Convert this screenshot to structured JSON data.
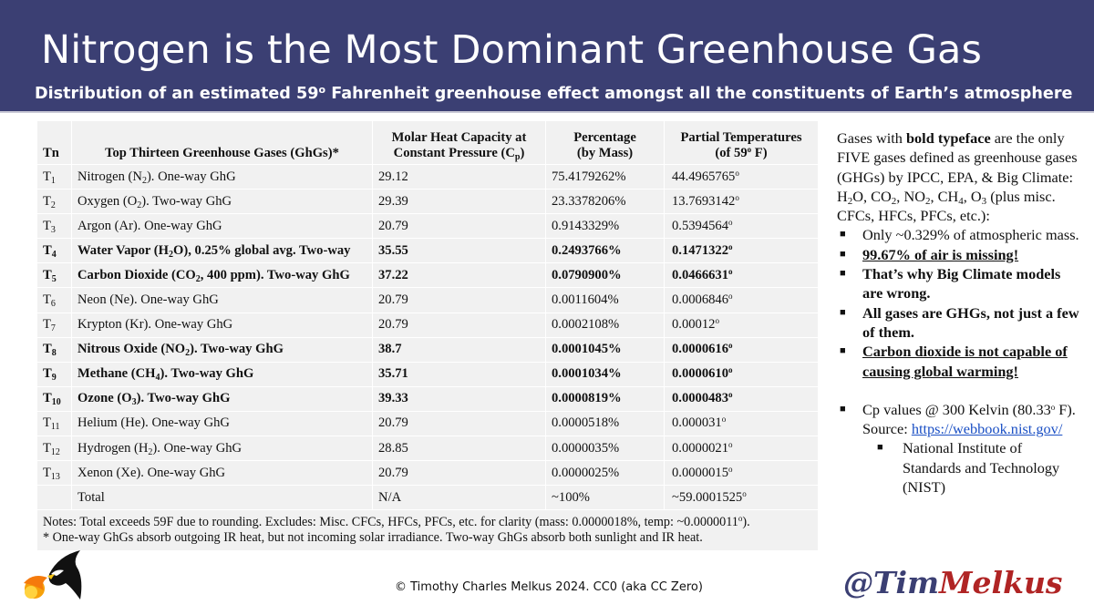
{
  "header": {
    "title": "Nitrogen is the Most Dominant Greenhouse Gas",
    "subtitle_before": "Distribution of an estimated 59",
    "subtitle_sup": "o",
    "subtitle_after": " Fahrenheit greenhouse effect amongst all the constituents of Earth’s atmosphere"
  },
  "table": {
    "headers": {
      "tn": "Tn",
      "gas": "Top Thirteen Greenhouse Gases (GhGs)*",
      "cp_line1": "Molar Heat Capacity at",
      "cp_line2": "Constant Pressure (C",
      "cp_sub": "p",
      "cp_end": ")",
      "pct_line1": "Percentage",
      "pct_line2": "(by Mass)",
      "temp_line1": "Partial Temperatures",
      "temp_line2": "(of 59",
      "temp_sup": "o",
      "temp_end": " F)"
    },
    "rows": [
      {
        "tn": "T",
        "tn_sub": "1",
        "gas": "Nitrogen (N",
        "gas_sub": "2",
        "gas_end": "). One-way GhG",
        "cp": "29.12",
        "pct": "75.4179262%",
        "temp": "44.4965765",
        "bold": false
      },
      {
        "tn": "T",
        "tn_sub": "2",
        "gas": "Oxygen (O",
        "gas_sub": "2",
        "gas_end": "). Two-way GhG",
        "cp": "29.39",
        "pct": "23.3378206%",
        "temp": "13.7693142",
        "bold": false
      },
      {
        "tn": "T",
        "tn_sub": "3",
        "gas": "Argon (Ar). One-way GhG",
        "gas_sub": "",
        "gas_end": "",
        "cp": "20.79",
        "pct": "0.9143329%",
        "temp": "0.5394564",
        "bold": false
      },
      {
        "tn": "T",
        "tn_sub": "4",
        "gas": "Water Vapor (H",
        "gas_sub": "2",
        "gas_end": "O), 0.25% global avg. Two-way",
        "cp": "35.55",
        "pct": "0.2493766%",
        "temp": "0.1471322",
        "bold": true
      },
      {
        "tn": "T",
        "tn_sub": "5",
        "gas": "Carbon Dioxide (CO",
        "gas_sub": "2",
        "gas_end": ", 400 ppm). Two-way GhG",
        "cp": "37.22",
        "pct": "0.0790900%",
        "temp": "0.0466631",
        "bold": true
      },
      {
        "tn": "T",
        "tn_sub": "6",
        "gas": "Neon (Ne). One-way GhG",
        "gas_sub": "",
        "gas_end": "",
        "cp": "20.79",
        "pct": "0.0011604%",
        "temp": "0.0006846",
        "bold": false
      },
      {
        "tn": "T",
        "tn_sub": "7",
        "gas": "Krypton (Kr). One-way GhG",
        "gas_sub": "",
        "gas_end": "",
        "cp": "20.79",
        "pct": "0.0002108%",
        "temp": "0.00012",
        "bold": false
      },
      {
        "tn": "T",
        "tn_sub": "8",
        "gas": "Nitrous Oxide (NO",
        "gas_sub": "2",
        "gas_end": "). Two-way GhG",
        "cp": "38.7",
        "pct": "0.0001045%",
        "temp": "0.0000616",
        "bold": true
      },
      {
        "tn": "T",
        "tn_sub": "9",
        "gas": "Methane (CH",
        "gas_sub": "4",
        "gas_end": "). Two-way GhG",
        "cp": "35.71",
        "pct": "0.0001034%",
        "temp": "0.0000610",
        "bold": true
      },
      {
        "tn": "T",
        "tn_sub": "10",
        "gas": "Ozone (O",
        "gas_sub": "3",
        "gas_end": "). Two-way GhG",
        "cp": "39.33",
        "pct": "0.0000819%",
        "temp": "0.0000483",
        "bold": true
      },
      {
        "tn": "T",
        "tn_sub": "11",
        "gas": "Helium (He). One-way GhG",
        "gas_sub": "",
        "gas_end": "",
        "cp": "20.79",
        "pct": "0.0000518%",
        "temp": "0.000031",
        "bold": false
      },
      {
        "tn": "T",
        "tn_sub": "12",
        "gas": "Hydrogen (H",
        "gas_sub": "2",
        "gas_end": "). One-way GhG",
        "cp": "28.85",
        "pct": "0.0000035%",
        "temp": "0.0000021",
        "bold": false
      },
      {
        "tn": "T",
        "tn_sub": "13",
        "gas": "Xenon (Xe). One-way GhG",
        "gas_sub": "",
        "gas_end": "",
        "cp": "20.79",
        "pct": "0.0000025%",
        "temp": "0.0000015",
        "bold": false
      }
    ],
    "total": {
      "label": "Total",
      "cp": "N/A",
      "pct": "~100%",
      "temp": "~59.0001525"
    },
    "degree_mark": "o",
    "notes_line1_before": "Notes: Total exceeds 59F due to rounding. Excludes: Misc. CFCs, HFCs, PFCs, etc. for clarity (mass: 0.0000018%, temp: ~0.0000011",
    "notes_line1_sup": "o",
    "notes_line1_after": ").",
    "notes_line2": "* One-way GhGs absorb outgoing IR heat, but not incoming solar irradiance. Two-way GhGs absorb both sunlight and IR heat."
  },
  "sidebar": {
    "intro_1": "Gases with ",
    "intro_bold": "bold typeface",
    "intro_2": " are the only FIVE gases defined as greenhouse gases (GHGs) by IPCC, EPA, & Big Climate: H",
    "intro_h2o_sub": "2",
    "intro_3": "O, CO",
    "intro_co2_sub": "2",
    "intro_4": ", NO",
    "intro_no2_sub": "2",
    "intro_5": ", CH",
    "intro_ch4_sub": "4",
    "intro_6": ", O",
    "intro_o3_sub": "3",
    "intro_7": " (plus misc. CFCs, HFCs, PFCs, etc.):",
    "bullets": [
      "Only ~0.329% of atmospheric mass.",
      "99.67% of air is missing!",
      "That’s why Big Climate models are wrong.",
      "All gases are GHGs, not just a few of them.",
      "Carbon dioxide is not capable of causing global warming!"
    ],
    "bullet_glyph": "■",
    "cp_note_before": "Cp values @ 300 Kelvin (80.33",
    "cp_note_sup": "o",
    "cp_note_after": " F). Source: ",
    "source_link": "https://webbook.nist.gov/",
    "sub_bullet": "National Institute of Standards and Technology (NIST)"
  },
  "footer": {
    "copyright": "© Timothy Charles Melkus 2024. CC0 (aka CC Zero)",
    "handle_part1": "@Tim",
    "handle_part2": "Melkus"
  },
  "colors": {
    "banner": "#3b3f73",
    "table_bg": "#f1f1f1",
    "link": "#1a4fc4",
    "handle_red": "#b02424"
  },
  "icons": {
    "logo": "eagle-breathing-fire-icon"
  }
}
